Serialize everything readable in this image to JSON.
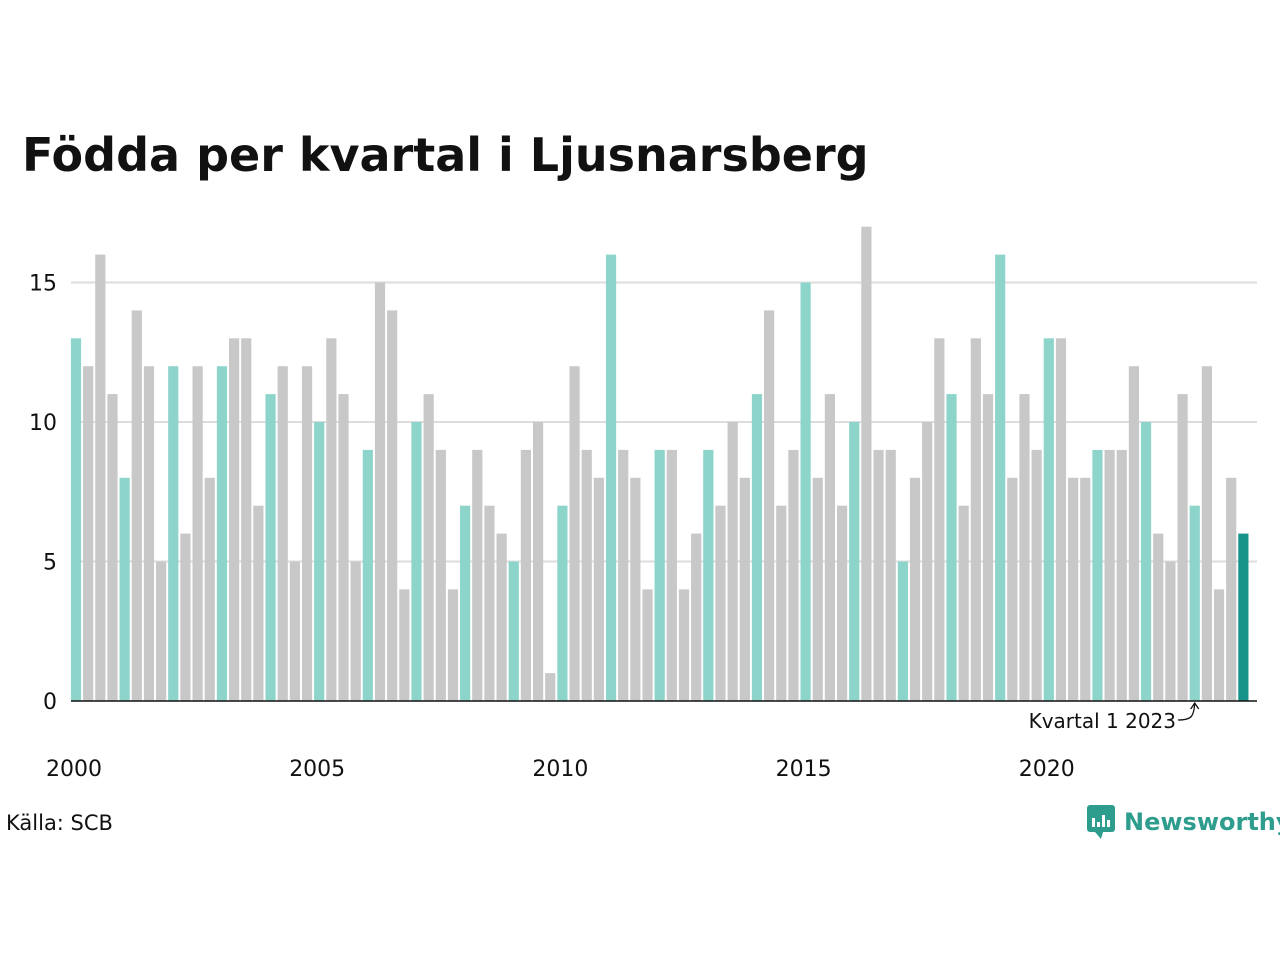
{
  "title": "Födda per kvartal i Ljusnarsberg",
  "source": "Källa: SCB",
  "brand": "Newsworthy",
  "colors": {
    "q1": "#8dd5cb",
    "other": "#c8c8c8",
    "latest": "#17948a",
    "grid": "#dddddd",
    "axis": "#111111",
    "brand": "#2e9d8d"
  },
  "chart_data": {
    "type": "bar",
    "title": "Födda per kvartal i Ljusnarsberg",
    "xlabel": "",
    "ylabel": "",
    "ylim": [
      0,
      17
    ],
    "yticks": [
      0,
      5,
      10,
      15
    ],
    "grid": true,
    "start": "2000 Q1",
    "frequency": "quarterly",
    "xticks": [
      {
        "label": "2000",
        "year": 2000
      },
      {
        "label": "2005",
        "year": 2005
      },
      {
        "label": "2010",
        "year": 2010
      },
      {
        "label": "2015",
        "year": 2015
      },
      {
        "label": "2020",
        "year": 2020
      }
    ],
    "values": [
      13,
      12,
      16,
      11,
      8,
      14,
      12,
      5,
      12,
      6,
      12,
      8,
      12,
      13,
      13,
      7,
      11,
      12,
      5,
      12,
      10,
      13,
      11,
      5,
      9,
      15,
      14,
      4,
      10,
      11,
      9,
      4,
      7,
      9,
      7,
      6,
      5,
      9,
      10,
      1,
      7,
      12,
      9,
      8,
      16,
      9,
      8,
      4,
      9,
      9,
      4,
      6,
      9,
      7,
      10,
      8,
      11,
      14,
      7,
      9,
      15,
      8,
      11,
      7,
      10,
      17,
      9,
      9,
      5,
      8,
      10,
      13,
      11,
      7,
      13,
      11,
      16,
      8,
      11,
      9,
      13,
      13,
      8,
      8,
      9,
      9,
      9,
      12,
      10,
      6,
      5,
      11,
      7,
      12,
      4,
      8,
      6
    ],
    "annotation": {
      "text": "Kvartal 1 2023",
      "target": "2023 Q1"
    }
  }
}
